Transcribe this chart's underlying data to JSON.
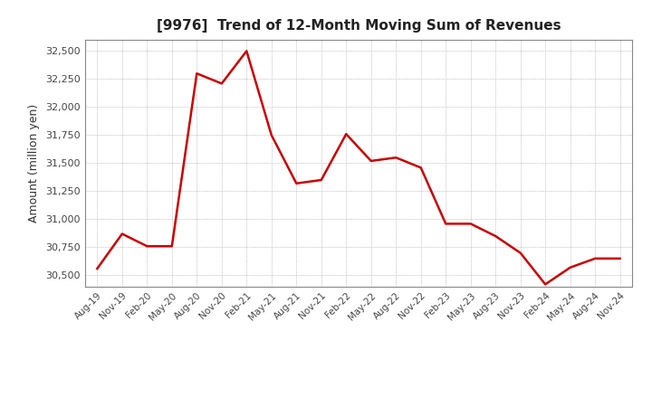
{
  "title": "[9976]  Trend of 12-Month Moving Sum of Revenues",
  "ylabel": "Amount (million yen)",
  "line_color": "#cc0000",
  "line_width": 1.8,
  "background_color": "#ffffff",
  "plot_background_color": "#ffffff",
  "grid_color": "#aaaaaa",
  "ylim": [
    30400,
    32600
  ],
  "yticks": [
    30500,
    30750,
    31000,
    31250,
    31500,
    31750,
    32000,
    32250,
    32500
  ],
  "x_labels": [
    "Aug-19",
    "Nov-19",
    "Feb-20",
    "May-20",
    "Aug-20",
    "Nov-20",
    "Feb-21",
    "May-21",
    "Aug-21",
    "Nov-21",
    "Feb-22",
    "May-22",
    "Aug-22",
    "Nov-22",
    "Feb-23",
    "May-23",
    "Aug-23",
    "Nov-23",
    "Feb-24",
    "May-24",
    "Aug-24",
    "Nov-24"
  ],
  "values": [
    30560,
    30870,
    30760,
    30760,
    32300,
    32210,
    32500,
    31750,
    31320,
    31350,
    31760,
    31520,
    31550,
    31460,
    30960,
    30960,
    30850,
    30700,
    30420,
    30570,
    30650,
    30650
  ]
}
